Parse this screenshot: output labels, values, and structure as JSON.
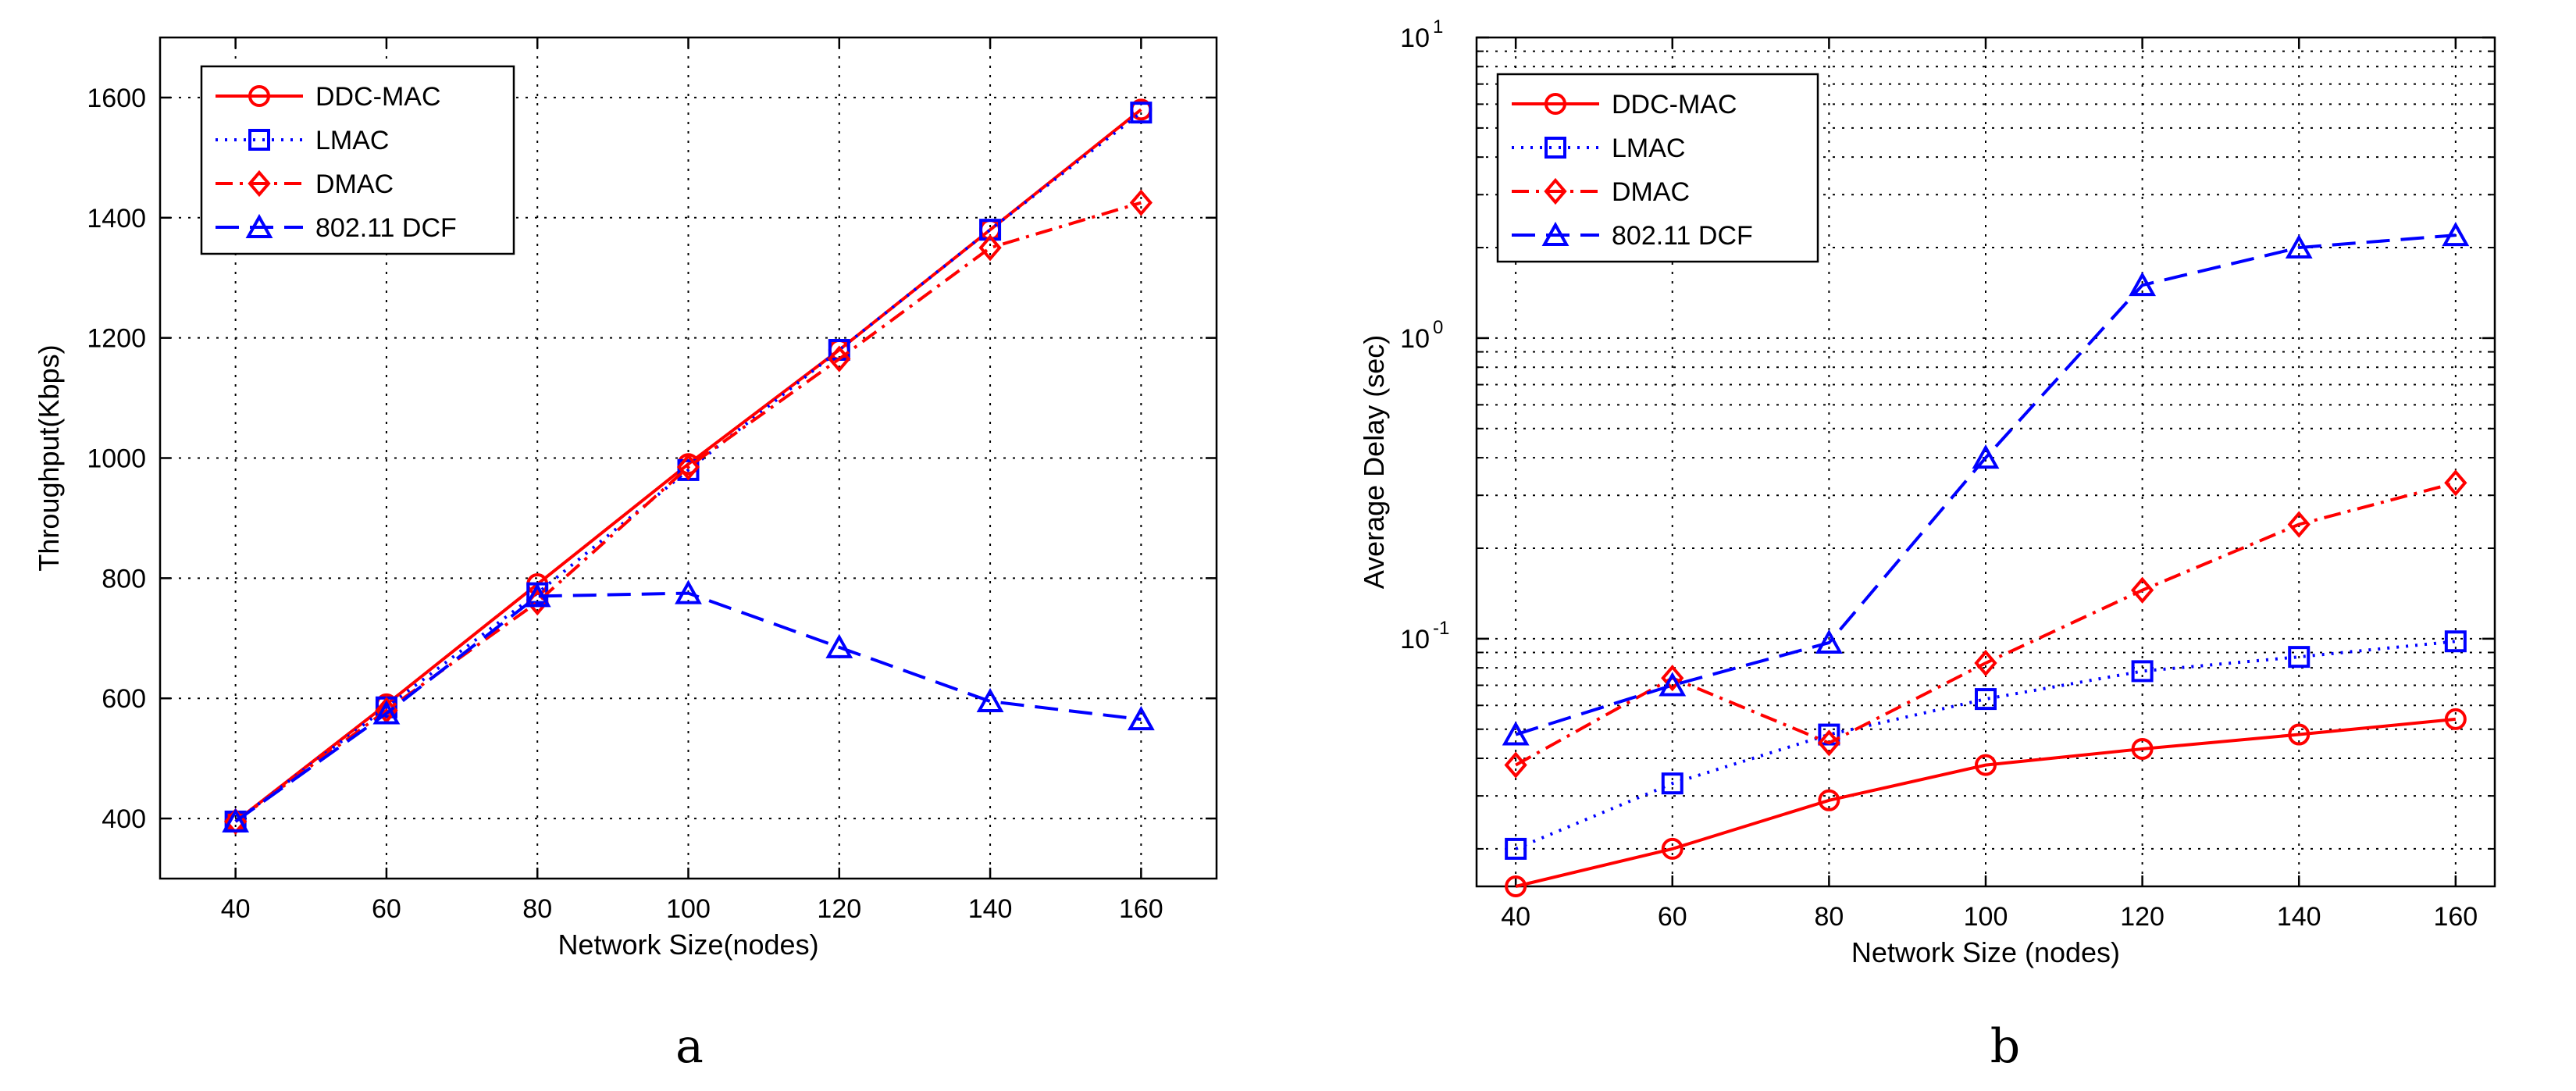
{
  "chart_data": [
    {
      "type": "line",
      "panel_label": "a",
      "xlabel": "Network Size(nodes)",
      "ylabel": "Throughput(Kbps)",
      "x": [
        40,
        60,
        80,
        100,
        120,
        140,
        160
      ],
      "xlim": [
        30,
        170
      ],
      "ylim": [
        300,
        1700
      ],
      "xticks": [
        "40",
        "60",
        "80",
        "100",
        "120",
        "140",
        "160"
      ],
      "yticks": [
        "400",
        "600",
        "800",
        "1000",
        "1200",
        "1400",
        "1600"
      ],
      "y_scale": "linear",
      "grid": true,
      "legend_position": "top-left",
      "series": [
        {
          "name": "DDC-MAC",
          "values": [
            395,
            590,
            790,
            990,
            1180,
            1380,
            1580
          ],
          "color": "#ff0000",
          "dash": "solid",
          "marker": "circle"
        },
        {
          "name": "LMAC",
          "values": [
            395,
            585,
            775,
            980,
            1180,
            1380,
            1575
          ],
          "color": "#0000ff",
          "dash": "dotted",
          "marker": "square"
        },
        {
          "name": "DMAC",
          "values": [
            395,
            580,
            760,
            985,
            1165,
            1350,
            1425
          ],
          "color": "#ff0000",
          "dash": "dashdot",
          "marker": "diamond"
        },
        {
          "name": "802.11 DCF",
          "values": [
            395,
            575,
            770,
            775,
            685,
            595,
            565
          ],
          "color": "#0000ff",
          "dash": "dashed",
          "marker": "triangle"
        }
      ]
    },
    {
      "type": "line",
      "panel_label": "b",
      "xlabel": "Network Size (nodes)",
      "ylabel": "Average Delay (sec)",
      "x": [
        40,
        60,
        80,
        100,
        120,
        140,
        160
      ],
      "xlim": [
        35,
        165
      ],
      "ylim": [
        0.015,
        10
      ],
      "xticks": [
        "40",
        "60",
        "80",
        "100",
        "120",
        "140",
        "160"
      ],
      "y_scale": "log",
      "y_major_ticks": [
        {
          "base": "10",
          "exp": "-1"
        },
        {
          "base": "10",
          "exp": "0"
        },
        {
          "base": "10",
          "exp": "1"
        }
      ],
      "grid": true,
      "legend_position": "top-left",
      "series": [
        {
          "name": "DDC-MAC",
          "values": [
            0.015,
            0.02,
            0.029,
            0.038,
            0.043,
            0.048,
            0.054
          ],
          "color": "#ff0000",
          "dash": "solid",
          "marker": "circle"
        },
        {
          "name": "LMAC",
          "values": [
            0.02,
            0.033,
            0.048,
            0.063,
            0.078,
            0.087,
            0.098
          ],
          "color": "#0000ff",
          "dash": "dotted",
          "marker": "square"
        },
        {
          "name": "DMAC",
          "values": [
            0.038,
            0.074,
            0.045,
            0.083,
            0.145,
            0.24,
            0.33
          ],
          "color": "#ff0000",
          "dash": "dashdot",
          "marker": "diamond"
        },
        {
          "name": "802.11 DCF",
          "values": [
            0.048,
            0.07,
            0.097,
            0.4,
            1.5,
            2.0,
            2.2
          ],
          "color": "#0000ff",
          "dash": "dashed",
          "marker": "triangle"
        }
      ]
    }
  ]
}
